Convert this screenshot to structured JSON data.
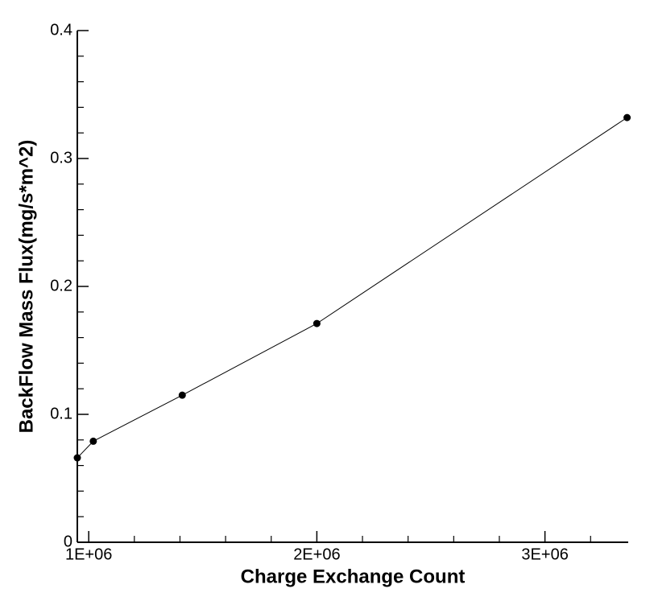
{
  "chart_data": {
    "type": "line",
    "x_label": "Charge Exchange Count",
    "y_label": "BackFlow Mass Flux(mg/s*m^2)",
    "x": [
      950000,
      1020000,
      1410000,
      2000000,
      3360000
    ],
    "series": [
      {
        "color": "#000000",
        "values": [
          0.066,
          0.079,
          0.115,
          0.171,
          0.332
        ]
      }
    ],
    "xlim": [
      950000,
      3365000
    ],
    "ylim": [
      0,
      0.4
    ],
    "xticks": [
      {
        "value": 1000000,
        "label": "1E+06"
      },
      {
        "value": 2000000,
        "label": "2E+06"
      },
      {
        "value": 3000000,
        "label": "3E+06"
      }
    ],
    "yticks": [
      0,
      0.1,
      0.2,
      0.3,
      0.4
    ],
    "xminorticks": [
      1200000,
      1400000,
      1600000,
      1800000,
      2200000,
      2400000,
      2600000,
      2800000,
      3200000
    ],
    "yminorticks": [
      0.02,
      0.04,
      0.06,
      0.08,
      0.12,
      0.14,
      0.16,
      0.18,
      0.22,
      0.24,
      0.26,
      0.28,
      0.32,
      0.34,
      0.36,
      0.38
    ],
    "grid": false
  }
}
